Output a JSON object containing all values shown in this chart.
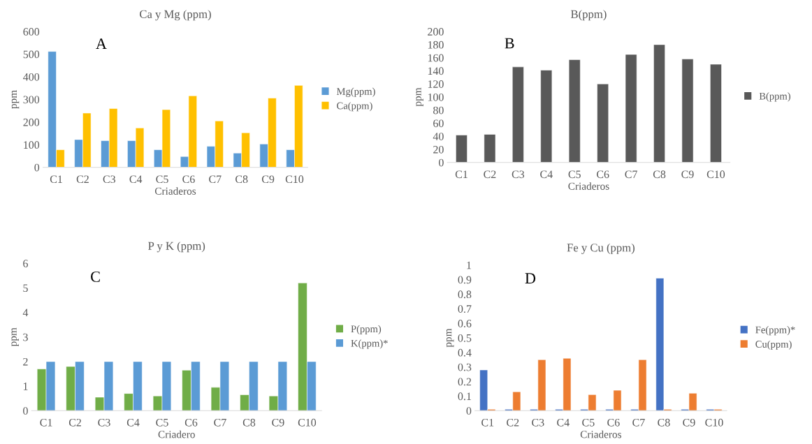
{
  "chart_data": [
    {
      "type": "bar",
      "title": "Ca y Mg (ppm)",
      "xlabel": "Criaderos",
      "ylabel": "ppm",
      "annotations": [
        "A"
      ],
      "legend": "right",
      "categories": [
        "C1",
        "C2",
        "C3",
        "C4",
        "C5",
        "C6",
        "C7",
        "C8",
        "C9",
        "C10"
      ],
      "ylim": [
        0,
        600
      ],
      "yticks": [
        0,
        100,
        200,
        300,
        400,
        500,
        600
      ],
      "series": [
        {
          "name": "Mg(ppm)",
          "color": "#5b9bd5",
          "values": [
            512,
            123,
            118,
            118,
            78,
            48,
            93,
            63,
            103,
            78
          ]
        },
        {
          "name": "Ca(ppm)",
          "color": "#ffc000",
          "values": [
            78,
            240,
            260,
            174,
            255,
            316,
            205,
            153,
            306,
            362
          ]
        }
      ]
    },
    {
      "type": "bar",
      "title": "B(ppm)",
      "xlabel": "Criaderos",
      "ylabel": "ppm",
      "annotations": [
        "B"
      ],
      "legend": "right",
      "categories": [
        "C1",
        "C2",
        "C3",
        "C4",
        "C5",
        "C6",
        "C7",
        "C8",
        "C9",
        "C10"
      ],
      "ylim": [
        0,
        200
      ],
      "yticks": [
        0,
        20,
        40,
        60,
        80,
        100,
        120,
        140,
        160,
        180,
        200
      ],
      "series": [
        {
          "name": "B(ppm)",
          "color": "#595959",
          "values": [
            42,
            43,
            146,
            141,
            157,
            120,
            165,
            180,
            158,
            150
          ]
        }
      ]
    },
    {
      "type": "bar",
      "title": "P y K (ppm)",
      "xlabel": "Criadero",
      "ylabel": "ppm",
      "annotations": [
        "C"
      ],
      "legend": "right",
      "categories": [
        "C1",
        "C2",
        "C3",
        "C4",
        "C5",
        "C6",
        "C7",
        "C8",
        "C9",
        "C10"
      ],
      "ylim": [
        0,
        6
      ],
      "yticks": [
        0,
        1,
        2,
        3,
        4,
        5,
        6
      ],
      "series": [
        {
          "name": "P(ppm)",
          "color": "#70ad47",
          "values": [
            1.7,
            1.8,
            0.55,
            0.7,
            0.6,
            1.65,
            0.95,
            0.65,
            0.6,
            5.2
          ]
        },
        {
          "name": "K(ppm)*",
          "color": "#5b9bd5",
          "values": [
            2,
            2,
            2,
            2,
            2,
            2,
            2,
            2,
            2,
            2
          ]
        }
      ]
    },
    {
      "type": "bar",
      "title": "Fe y Cu (ppm)",
      "xlabel": "Criaderos",
      "ylabel": "ppm",
      "annotations": [
        "D"
      ],
      "legend": "right",
      "categories": [
        "C1",
        "C2",
        "C3",
        "C4",
        "C5",
        "C6",
        "C7",
        "C8",
        "C9",
        "C10"
      ],
      "ylim": [
        0,
        1
      ],
      "yticks": [
        0,
        0.1,
        0.2,
        0.3,
        0.4,
        0.5,
        0.6,
        0.7,
        0.8,
        0.9,
        1
      ],
      "series": [
        {
          "name": "Fe(ppm)*",
          "color": "#4472c4",
          "values": [
            0.28,
            0.01,
            0.01,
            0.01,
            0.01,
            0.01,
            0.01,
            0.91,
            0.01,
            0.01
          ]
        },
        {
          "name": "Cu(ppm)",
          "color": "#ed7d31",
          "values": [
            0.01,
            0.13,
            0.35,
            0.36,
            0.11,
            0.14,
            0.35,
            0.01,
            0.12,
            0.01
          ]
        }
      ]
    }
  ]
}
